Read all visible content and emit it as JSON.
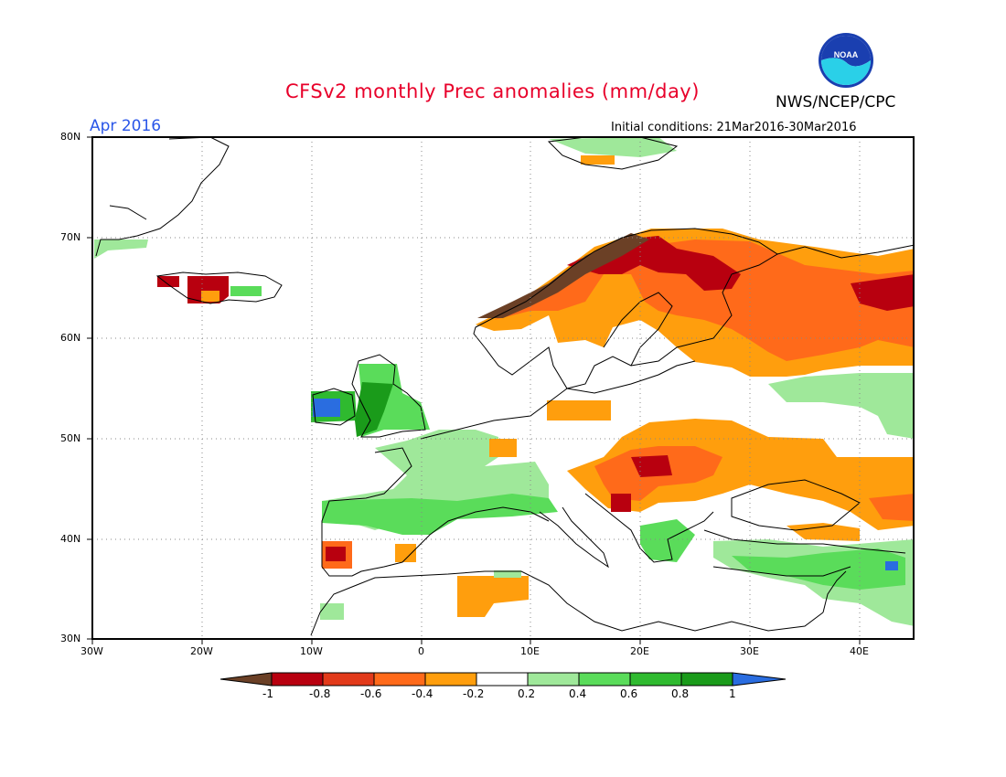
{
  "title": "CFSv2 monthly Prec anomalies (mm/day)",
  "month_label": "Apr 2016",
  "initial_conditions": "Initial conditions: 21Mar2016-30Mar2016",
  "agency": "NWS/NCEP/CPC",
  "logo_text": "NOAA",
  "x_ticks": [
    "30W",
    "20W",
    "10W",
    "0",
    "10E",
    "20E",
    "30E",
    "40E"
  ],
  "y_ticks": [
    "80N",
    "70N",
    "60N",
    "50N",
    "40N",
    "30N"
  ],
  "colorbar": {
    "labels": [
      "-1",
      "-0.8",
      "-0.6",
      "-0.4",
      "-0.2",
      "0.2",
      "0.4",
      "0.6",
      "0.8",
      "1"
    ],
    "colors": [
      "#6b4026",
      "#b8000f",
      "#e23a1a",
      "#ff6a1a",
      "#ff9e0d",
      "#ffffff",
      "#9fe89a",
      "#5adc5a",
      "#2fba2f",
      "#1a9b1a",
      "#2a6de0"
    ]
  },
  "colors": {
    "title": "#e8002a",
    "month": "#2a56e8",
    "drier_brown": "#6b4026",
    "wetter_blue": "#2a6de0"
  }
}
